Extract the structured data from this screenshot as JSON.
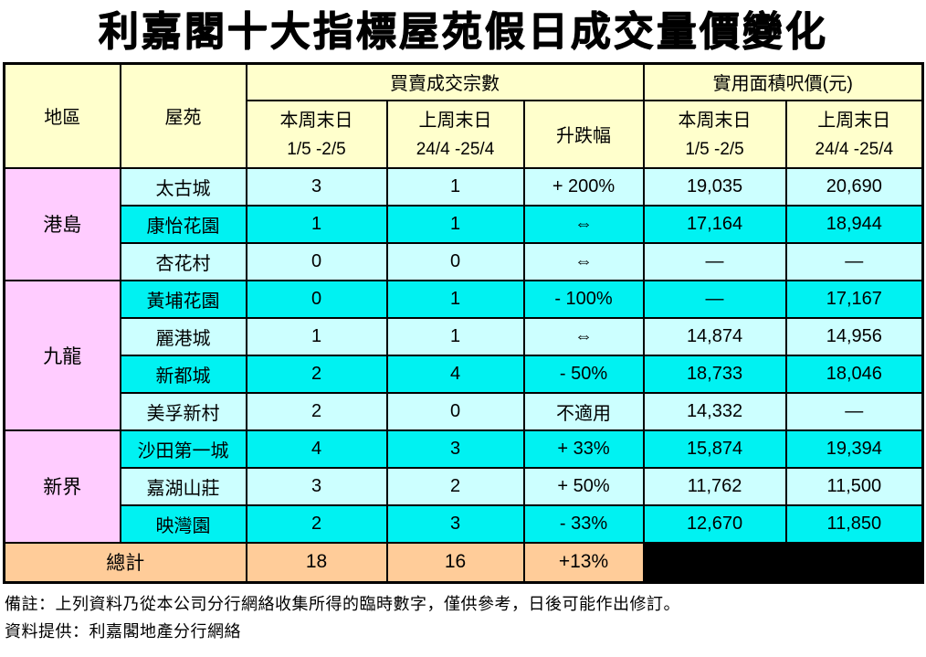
{
  "title": "利嘉閣十大指標屋苑假日成交量價變化",
  "table": {
    "header": {
      "district": "地區",
      "estate": "屋苑",
      "group_transactions": "買賣成交宗數",
      "group_price": "實用面積呎價(元)",
      "this_week": "本周末日",
      "this_week_dates": "1/5 -2/5",
      "last_week": "上周末日",
      "last_week_dates": "24/4 -25/4",
      "change": "升跌幅"
    },
    "regions": [
      {
        "name": "港島",
        "rows": 3
      },
      {
        "name": "九龍",
        "rows": 4
      },
      {
        "name": "新界",
        "rows": 3
      }
    ],
    "rows": [
      {
        "estate": "太古城",
        "this_week": "3",
        "last_week": "1",
        "change": "+ 200%",
        "psf_this_week": "19,035",
        "psf_last_week": "20,690"
      },
      {
        "estate": "康怡花園",
        "this_week": "1",
        "last_week": "1",
        "change": "⇔",
        "psf_this_week": "17,164",
        "psf_last_week": "18,944"
      },
      {
        "estate": "杏花村",
        "this_week": "0",
        "last_week": "0",
        "change": "⇔",
        "psf_this_week": "—",
        "psf_last_week": "—"
      },
      {
        "estate": "黃埔花園",
        "this_week": "0",
        "last_week": "1",
        "change": "- 100%",
        "psf_this_week": "—",
        "psf_last_week": "17,167"
      },
      {
        "estate": "麗港城",
        "this_week": "1",
        "last_week": "1",
        "change": "⇔",
        "psf_this_week": "14,874",
        "psf_last_week": "14,956"
      },
      {
        "estate": "新都城",
        "this_week": "2",
        "last_week": "4",
        "change": "- 50%",
        "psf_this_week": "18,733",
        "psf_last_week": "18,046"
      },
      {
        "estate": "美孚新村",
        "this_week": "2",
        "last_week": "0",
        "change": "不適用",
        "psf_this_week": "14,332",
        "psf_last_week": "—"
      },
      {
        "estate": "沙田第一城",
        "this_week": "4",
        "last_week": "3",
        "change": "+ 33%",
        "psf_this_week": "15,874",
        "psf_last_week": "19,394"
      },
      {
        "estate": "嘉湖山莊",
        "this_week": "3",
        "last_week": "2",
        "change": "+ 50%",
        "psf_this_week": "11,762",
        "psf_last_week": "11,500"
      },
      {
        "estate": "映灣園",
        "this_week": "2",
        "last_week": "3",
        "change": "- 33%",
        "psf_this_week": "12,670",
        "psf_last_week": "11,850"
      }
    ],
    "total": {
      "label": "總計",
      "this_week": "18",
      "last_week": "16",
      "change": "+13%"
    }
  },
  "footnotes": [
    "備註：上列資料乃從本公司分行網絡收集所得的臨時數字，僅供參考，日後可能作出修訂。",
    "資料提供：利嘉閣地產分行網絡"
  ],
  "colors": {
    "header_bg": "#FFFFCC",
    "region_bg": "#FFCCFF",
    "row_light_bg": "#CCFFFF",
    "row_dark_bg": "#00F2F2",
    "total_bg": "#FFCC99",
    "blank_bg": "#000000",
    "border": "#000000"
  }
}
